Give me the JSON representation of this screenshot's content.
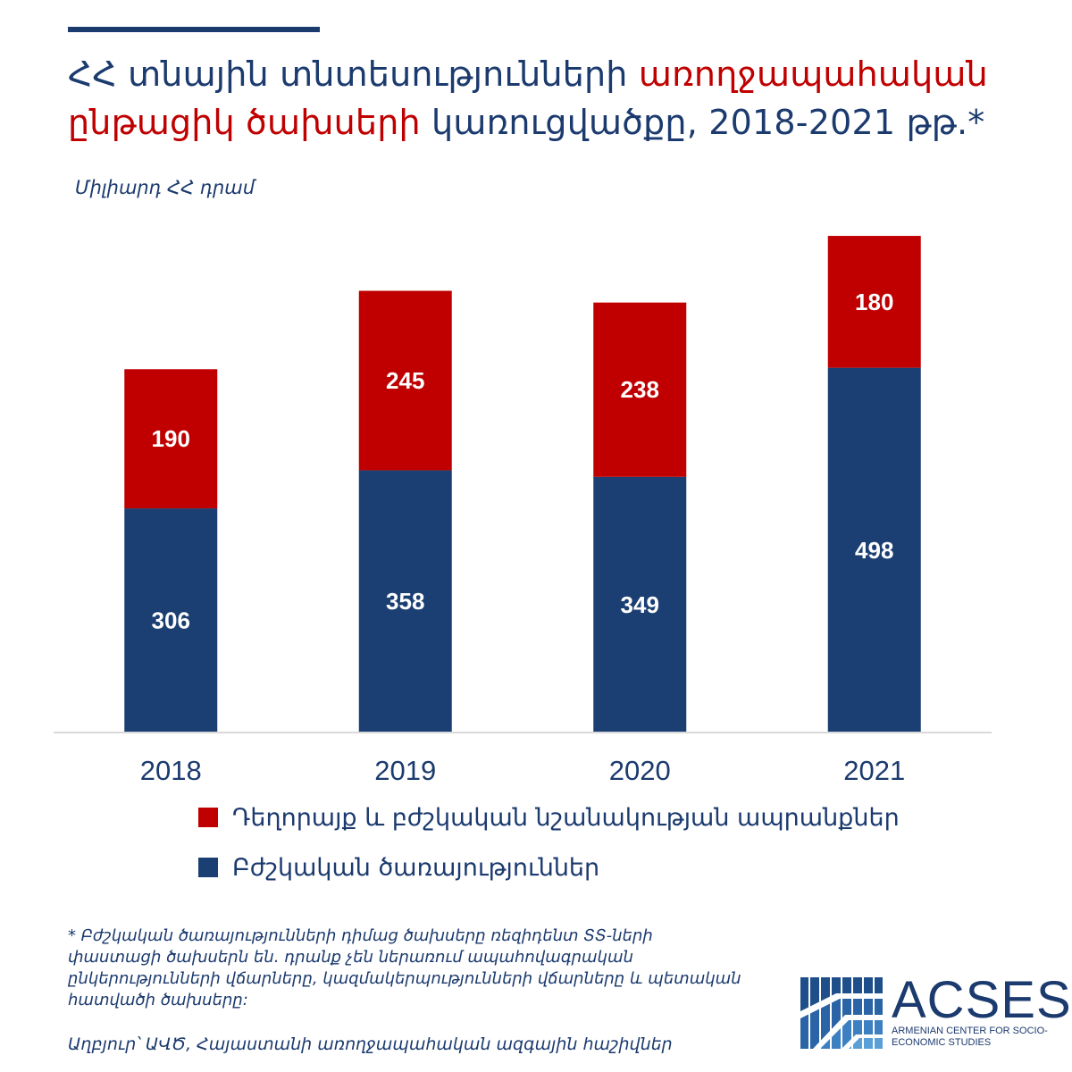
{
  "title": {
    "part1": "ՀՀ տնային տնտեսությունների ",
    "part2_red": "առողջապահական ընթացիկ ծախսերի",
    "part3": " կառուցվածքը, 2018-2021 թթ.*"
  },
  "unit_label": "Միլիարդ ՀՀ դրամ",
  "colors": {
    "navy": "#1b3f72",
    "red": "#c00000",
    "text": "#1b3a6e",
    "axis": "#d9d9d9"
  },
  "chart_data": {
    "type": "bar",
    "stacked": true,
    "categories": [
      "2018",
      "2019",
      "2020",
      "2021"
    ],
    "series": [
      {
        "name": "Բժշկական ծառայություններ",
        "color": "#1b3f72",
        "values": [
          306,
          358,
          349,
          498
        ]
      },
      {
        "name": "Դեղորայք և բժշկական նշանակության ապրանքներ",
        "color": "#c00000",
        "values": [
          190,
          245,
          238,
          180
        ]
      }
    ],
    "ylim": [
      0,
      700
    ],
    "grid": false,
    "legend_position": "bottom-left",
    "data_labels": true
  },
  "legend": [
    {
      "label": "Դեղորայք և բժշկական նշանակության ապրանքներ",
      "color": "#c00000"
    },
    {
      "label": "Բժշկական ծառայություններ",
      "color": "#1b3f72"
    }
  ],
  "footnote": "* Բժշկական ծառայությունների դիմաց ծախսերը ռեզիդենտ ՏՏ-ների փաստացի ծախսերն են․ դրանք չեն ներառում ապահովագրական ընկերությունների վճարները, կազմակերպությունների վճարները և պետական հատվածի ծախսերը:",
  "source": "Աղբյուր՝ ԱՎԾ, Հայաստանի առողջապահական ազգային հաշիվներ",
  "logo": {
    "name": "ACSES",
    "subtitle": "ARMENIAN CENTER FOR SOCIO-ECONOMIC STUDIES",
    "icon": "stadium-logo-icon"
  }
}
